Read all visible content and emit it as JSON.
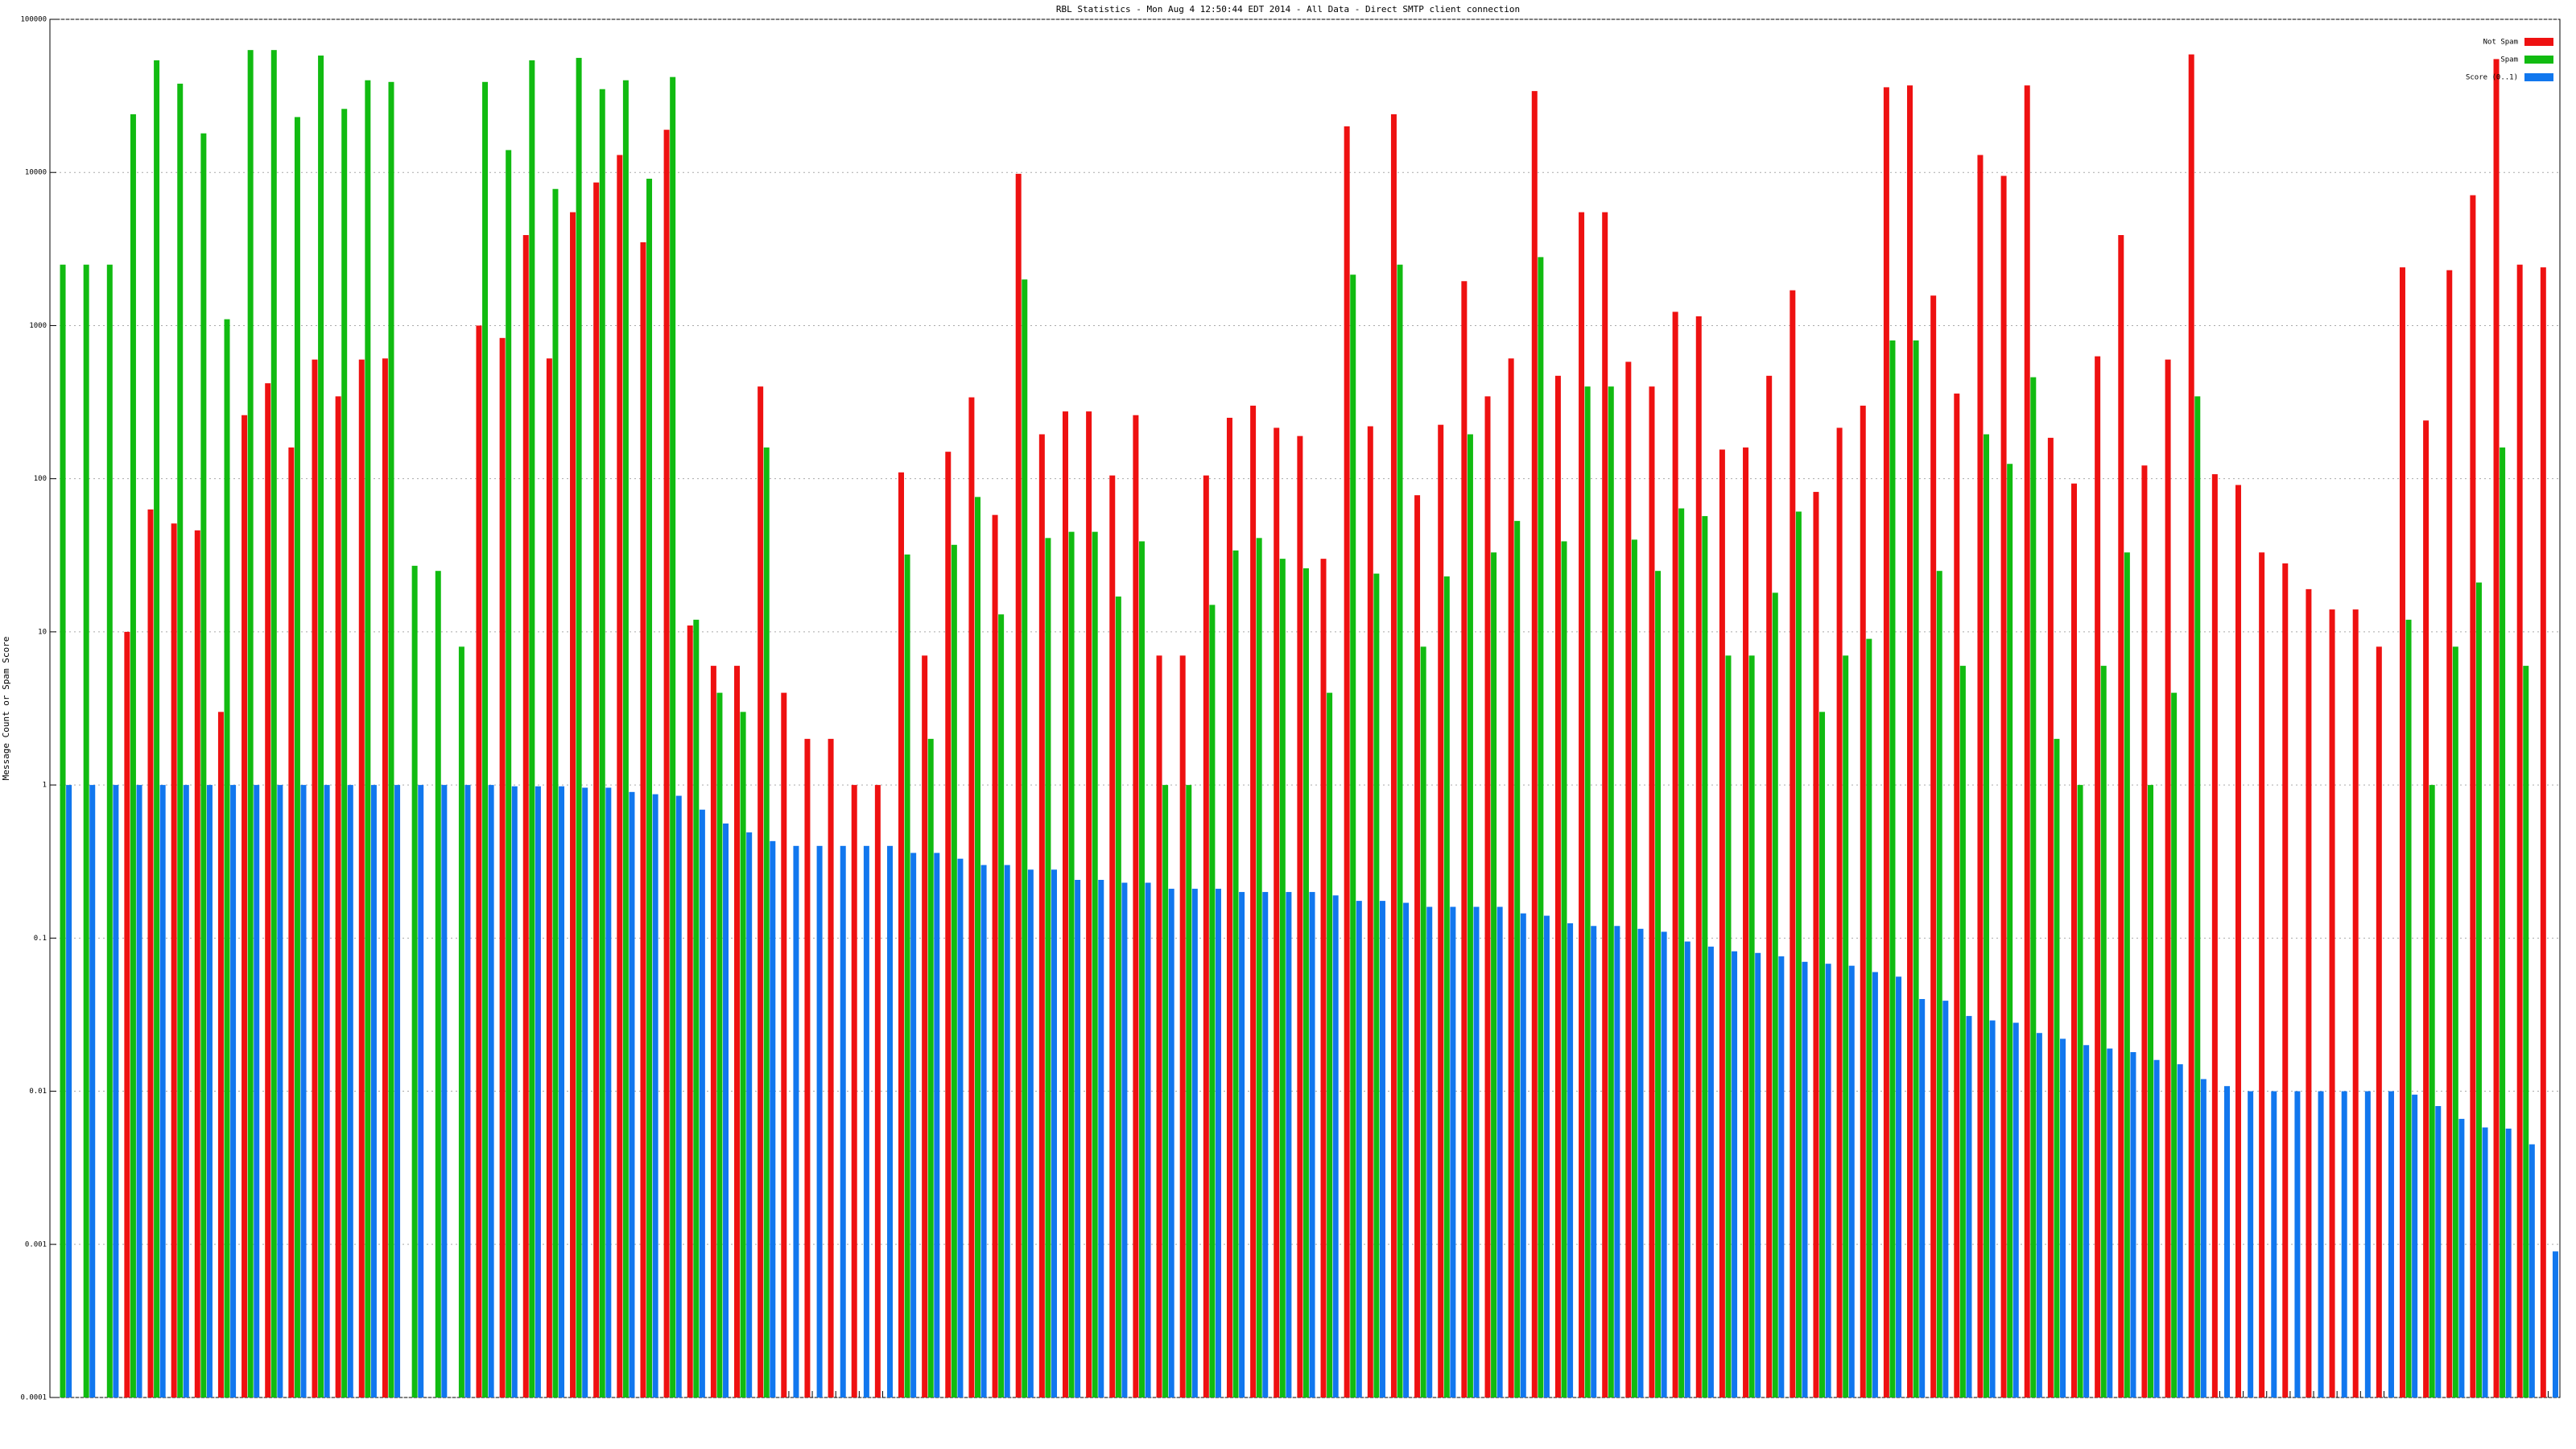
{
  "chart_data": {
    "type": "bar",
    "title": "RBL Statistics - Mon Aug  4 12:50:44 EDT 2014 - All Data - Direct SMTP client connection",
    "ylabel": "Message Count or Spam Score",
    "log_y": true,
    "grid": true,
    "legend": "top-right",
    "ylim": [
      0.0001,
      100000
    ],
    "yticks": [
      0.0001,
      0.001,
      0.01,
      0.1,
      1,
      10,
      100,
      1000,
      10000,
      100000
    ],
    "categories": [
      null,
      null,
      null,
      null,
      null,
      null,
      null,
      null,
      null,
      null,
      null,
      null,
      null,
      null,
      null,
      null,
      null,
      null,
      null,
      null,
      null,
      null,
      null,
      null,
      null,
      null,
      null,
      null,
      null,
      null,
      null,
      null,
      null,
      null,
      null,
      null,
      null,
      null,
      null,
      null,
      null,
      null,
      null,
      null,
      null,
      null,
      null,
      null,
      null,
      null,
      null,
      null,
      null,
      null,
      null,
      null,
      null,
      null,
      null,
      null,
      null,
      null,
      null,
      null,
      null,
      null,
      null,
      null,
      null,
      null,
      null,
      null,
      null,
      null,
      null,
      null,
      null,
      null,
      null,
      null,
      null,
      null,
      null,
      null,
      null,
      null,
      null,
      null,
      null,
      null,
      null,
      null,
      null,
      null,
      null,
      null,
      null,
      null,
      null,
      null,
      null,
      null,
      null,
      null,
      null,
      null,
      null
    ],
    "series": [
      {
        "name": "Not Spam",
        "color": "#ee1111",
        "values": [
          null,
          null,
          null,
          10,
          63,
          51,
          46,
          3,
          260,
          420,
          160,
          600,
          345,
          600,
          610,
          null,
          null,
          null,
          1000,
          830,
          3900,
          610,
          5500,
          8600,
          13000,
          3500,
          19000,
          11,
          6,
          6,
          400,
          4,
          2,
          2,
          1,
          1,
          110,
          7,
          150,
          340,
          58,
          9800,
          195,
          275,
          275,
          105,
          260,
          7,
          7,
          105,
          250,
          300,
          215,
          190,
          30,
          20000,
          220,
          24000,
          78,
          225,
          1950,
          345,
          610,
          34000,
          470,
          5500,
          5500,
          580,
          400,
          1230,
          1150,
          155,
          160,
          470,
          1700,
          82,
          215,
          300,
          36000,
          37000,
          1570,
          360,
          13000,
          9500,
          37000,
          185,
          93,
          630,
          3900,
          122,
          600,
          59000,
          107,
          91,
          33,
          28,
          19,
          14,
          14,
          8,
          2400,
          240,
          2300,
          7100,
          55000,
          2500,
          2400
        ]
      },
      {
        "name": "Spam",
        "color": "#11bb11",
        "values": [
          2500,
          2500,
          2500,
          24000,
          54000,
          38000,
          18000,
          1100,
          63000,
          63000,
          23000,
          58000,
          26000,
          40000,
          39000,
          27,
          25,
          8,
          39000,
          14000,
          54000,
          7800,
          56000,
          35000,
          40000,
          9100,
          42000,
          12,
          4,
          3,
          160,
          null,
          null,
          null,
          null,
          null,
          32,
          2,
          37,
          76,
          13,
          2000,
          41,
          45,
          45,
          17,
          39,
          1,
          1,
          15,
          34,
          41,
          30,
          26,
          4,
          2150,
          24,
          2500,
          8,
          23,
          195,
          33,
          53,
          2800,
          39,
          400,
          400,
          40,
          25,
          64,
          57,
          7,
          7,
          18,
          61,
          3,
          7,
          9,
          800,
          800,
          25,
          6,
          195,
          125,
          460,
          2,
          1,
          6,
          33,
          1,
          4,
          345,
          null,
          null,
          null,
          null,
          null,
          null,
          null,
          null,
          12,
          1,
          8,
          21,
          160,
          6,
          null
        ]
      },
      {
        "name": "Score (0..1)",
        "color": "#1177ee",
        "values": [
          1,
          1,
          1,
          1,
          1,
          1,
          1,
          1,
          1,
          1,
          1,
          1,
          1,
          1,
          1,
          1,
          1,
          1,
          1,
          0.98,
          0.98,
          0.98,
          0.96,
          0.96,
          0.9,
          0.87,
          0.85,
          0.69,
          0.56,
          0.49,
          0.43,
          0.4,
          0.4,
          0.4,
          0.4,
          0.4,
          0.36,
          0.36,
          0.33,
          0.3,
          0.3,
          0.28,
          0.28,
          0.24,
          0.24,
          0.23,
          0.23,
          0.21,
          0.21,
          0.21,
          0.2,
          0.2,
          0.2,
          0.2,
          0.19,
          0.175,
          0.175,
          0.17,
          0.16,
          0.16,
          0.16,
          0.16,
          0.145,
          0.14,
          0.125,
          0.12,
          0.12,
          0.115,
          0.11,
          0.095,
          0.088,
          0.082,
          0.08,
          0.076,
          0.07,
          0.068,
          0.066,
          0.06,
          0.056,
          0.04,
          0.039,
          0.031,
          0.029,
          0.028,
          0.024,
          0.022,
          0.02,
          0.019,
          0.018,
          0.016,
          0.015,
          0.012,
          0.0108,
          0.01,
          0.01,
          0.01,
          0.01,
          0.01,
          0.01,
          0.01,
          0.0095,
          0.008,
          0.0066,
          0.0058,
          0.0057,
          0.0045,
          0.0009
        ]
      }
    ]
  }
}
